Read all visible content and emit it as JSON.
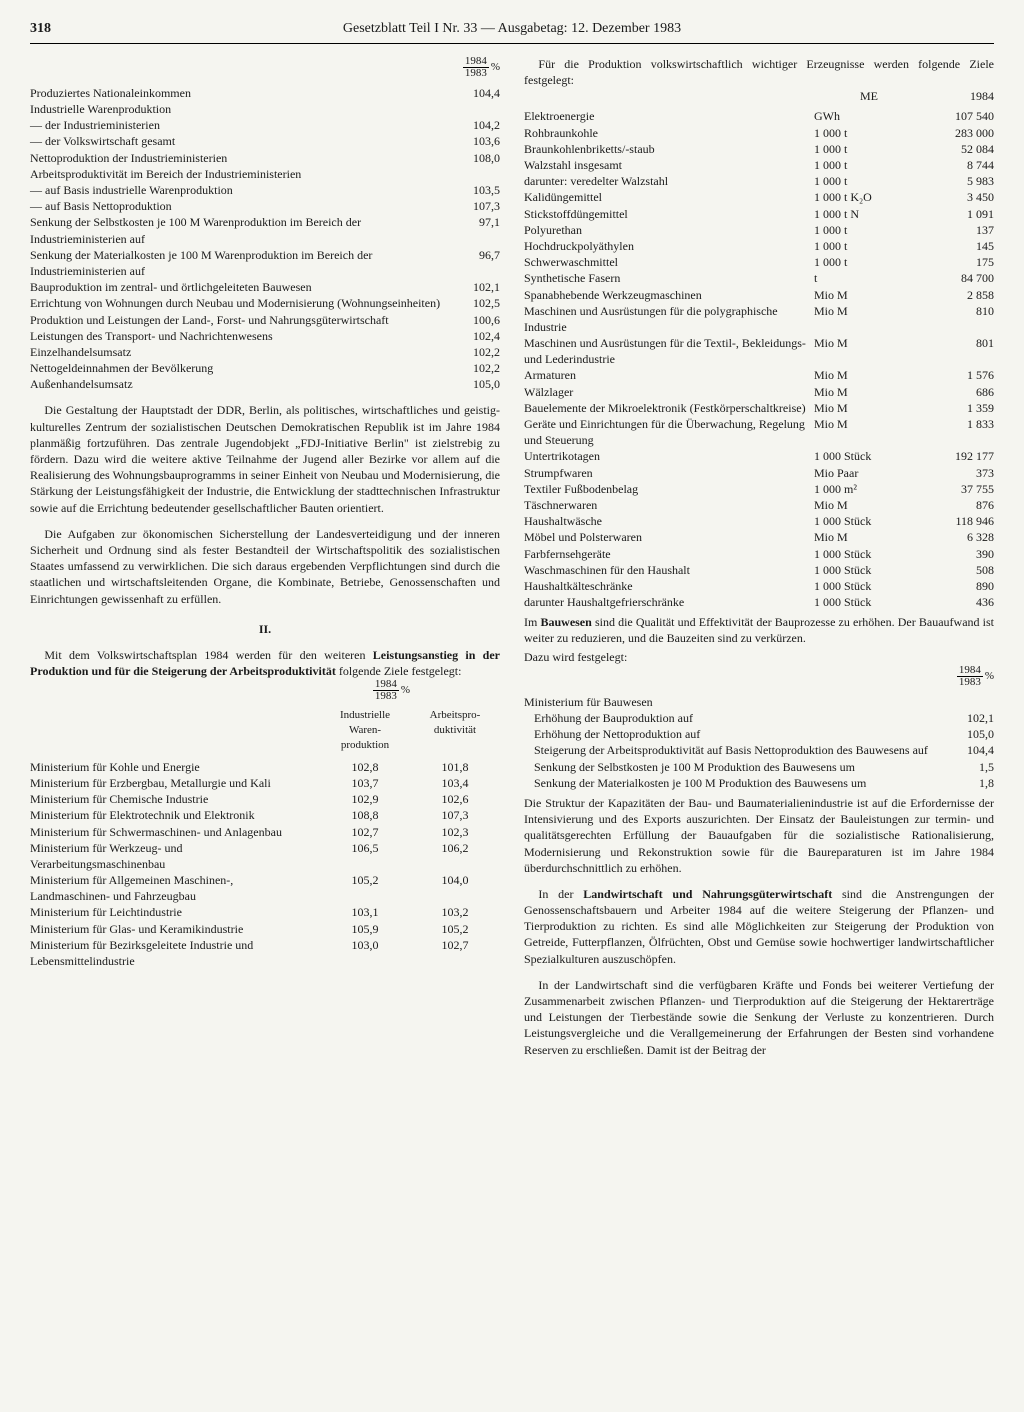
{
  "header": {
    "page_number": "318",
    "title": "Gesetzblatt Teil I Nr. 33 — Ausgabetag: 12. Dezember 1983"
  },
  "frac": {
    "num": "1984",
    "den": "1983",
    "suffix": "%"
  },
  "left": {
    "table1": [
      {
        "label": "Produziertes Nationaleinkommen",
        "val": "104,4"
      },
      {
        "label": "Industrielle Warenproduktion",
        "val": ""
      },
      {
        "label": "— der Industrieministerien",
        "val": "104,2"
      },
      {
        "label": "— der Volkswirtschaft gesamt",
        "val": "103,6"
      },
      {
        "label": "Nettoproduktion der Industrieministerien",
        "val": "108,0"
      },
      {
        "label": "Arbeitsproduktivität im Bereich der Industrieministerien",
        "val": ""
      },
      {
        "label": "— auf Basis industrielle Warenproduktion",
        "val": "103,5"
      },
      {
        "label": "— auf Basis Nettoproduktion",
        "val": "107,3"
      },
      {
        "label": "Senkung der Selbstkosten je 100 M Warenproduktion im Bereich der Industrieministerien auf",
        "val": "97,1"
      },
      {
        "label": "Senkung der Materialkosten je 100 M Warenproduktion im Bereich der Industrieministerien auf",
        "val": "96,7"
      },
      {
        "label": "Bauproduktion im zentral- und örtlichgeleiteten Bauwesen",
        "val": "102,1"
      },
      {
        "label": "Errichtung von Wohnungen durch Neubau und Modernisierung (Wohnungseinheiten)",
        "val": "102,5"
      },
      {
        "label": "Produktion und Leistungen der Land-, Forst- und Nahrungsgüterwirtschaft",
        "val": "100,6"
      },
      {
        "label": "Leistungen des Transport- und Nachrichtenwesens",
        "val": "102,4"
      },
      {
        "label": "Einzelhandelsumsatz",
        "val": "102,2"
      },
      {
        "label": "Nettogeldeinnahmen der Bevölkerung",
        "val": "102,2"
      },
      {
        "label": "Außenhandelsumsatz",
        "val": "105,0"
      }
    ],
    "para1": "Die Gestaltung der Hauptstadt der DDR, Berlin, als politisches, wirtschaftliches und geistig-kulturelles Zentrum der sozialistischen Deutschen Demokratischen Republik ist im Jahre 1984 planmäßig fortzuführen. Das zentrale Jugendobjekt „FDJ-Initiative Berlin\" ist zielstrebig zu fördern. Dazu wird die weitere aktive Teilnahme der Jugend aller Bezirke vor allem auf die Realisierung des Wohnungsbauprogramms in seiner Einheit von Neubau und Modernisierung, die Stärkung der Leistungsfähigkeit der Industrie, die Entwicklung der stadttechnischen Infrastruktur sowie auf die Errichtung bedeutender gesellschaftlicher Bauten orientiert.",
    "para2": "Die Aufgaben zur ökonomischen Sicherstellung der Landesverteidigung und der inneren Sicherheit und Ordnung sind als fester Bestandteil der Wirtschaftspolitik des sozialistischen Staates umfassend zu verwirklichen. Die sich daraus ergebenden Verpflichtungen sind durch die staatlichen und wirtschaftsleitenden Organe, die Kombinate, Betriebe, Genossenschaften und Einrichtungen gewissenhaft zu erfüllen.",
    "section2": "II.",
    "para3_pre": "Mit dem Volkswirtschaftsplan 1984 werden für den weiteren ",
    "para3_b1": "Leistungsanstieg in der Produktion und für die Steigerung der Arbeitsproduktivität",
    "para3_post": " folgende Ziele festgelegt:",
    "table2_headers": {
      "c2a": "Industrielle",
      "c2b": "Waren-",
      "c2c": "produktion",
      "c3a": "Arbeitspro-",
      "c3b": "duktivität"
    },
    "table2": [
      {
        "c1": "Ministerium für Kohle und Energie",
        "c2": "102,8",
        "c3": "101,8"
      },
      {
        "c1": "Ministerium für Erzbergbau, Metallurgie und Kali",
        "c2": "103,7",
        "c3": "103,4"
      },
      {
        "c1": "Ministerium für Chemische Industrie",
        "c2": "102,9",
        "c3": "102,6"
      },
      {
        "c1": "Ministerium für Elektrotechnik und Elektronik",
        "c2": "108,8",
        "c3": "107,3"
      },
      {
        "c1": "Ministerium für Schwermaschinen- und Anlagenbau",
        "c2": "102,7",
        "c3": "102,3"
      },
      {
        "c1": "Ministerium für Werkzeug- und Verarbeitungsmaschinenbau",
        "c2": "106,5",
        "c3": "106,2"
      },
      {
        "c1": "Ministerium für Allgemeinen Maschinen-, Landmaschinen- und Fahrzeugbau",
        "c2": "105,2",
        "c3": "104,0"
      },
      {
        "c1": "Ministerium für Leichtindustrie",
        "c2": "103,1",
        "c3": "103,2"
      },
      {
        "c1": "Ministerium für Glas- und Keramikindustrie",
        "c2": "105,9",
        "c3": "105,2"
      },
      {
        "c1": "Ministerium für Bezirksgeleitete Industrie und Lebensmittelindustrie",
        "c2": "103,0",
        "c3": "102,7"
      }
    ]
  },
  "right": {
    "para_intro": "Für die Produktion volkswirtschaftlich wichtiger Erzeugnisse werden folgende Ziele festgelegt:",
    "me_header": {
      "c2": "ME",
      "c3": "1984"
    },
    "me_table": [
      {
        "c1": "Elektroenergie",
        "c2": "GWh",
        "c3": "107 540"
      },
      {
        "c1": "Rohbraunkohle",
        "c2": "1 000 t",
        "c3": "283 000"
      },
      {
        "c1": "Braunkohlenbriketts/-staub",
        "c2": "1 000 t",
        "c3": "52 084"
      },
      {
        "c1": "Walzstahl insgesamt",
        "c2": "1 000 t",
        "c3": "8 744"
      },
      {
        "c1": "darunter: veredelter Walzstahl",
        "c2": "1 000 t",
        "c3": "5 983"
      },
      {
        "c1": "Kalidüngemittel",
        "c2": "1 000 t K₂O",
        "c3": "3 450"
      },
      {
        "c1": "Stickstoffdüngemittel",
        "c2": "1 000 t N",
        "c3": "1 091"
      },
      {
        "c1": "Polyurethan",
        "c2": "1 000 t",
        "c3": "137"
      },
      {
        "c1": "Hochdruckpolyäthylen",
        "c2": "1 000 t",
        "c3": "145"
      },
      {
        "c1": "Schwerwaschmittel",
        "c2": "1 000 t",
        "c3": "175"
      },
      {
        "c1": "Synthetische Fasern",
        "c2": "t",
        "c3": "84 700"
      },
      {
        "c1": "Spanabhebende Werkzeugmaschinen",
        "c2": "Mio M",
        "c3": "2 858"
      },
      {
        "c1": "Maschinen und Ausrüstungen für die polygraphische Industrie",
        "c2": "Mio M",
        "c3": "810"
      },
      {
        "c1": "Maschinen und Ausrüstungen für die Textil-, Bekleidungs- und Lederindustrie",
        "c2": "Mio M",
        "c3": "801"
      },
      {
        "c1": "Armaturen",
        "c2": "Mio M",
        "c3": "1 576"
      },
      {
        "c1": "Wälzlager",
        "c2": "Mio M",
        "c3": "686"
      },
      {
        "c1": "Bauelemente der Mikroelektronik (Festkörperschaltkreise)",
        "c2": "Mio M",
        "c3": "1 359"
      },
      {
        "c1": "Geräte und Einrichtungen für die Überwachung, Regelung und Steuerung",
        "c2": "Mio M",
        "c3": "1 833"
      },
      {
        "c1": "Untertrikotagen",
        "c2": "1 000 Stück",
        "c3": "192 177"
      },
      {
        "c1": "Strumpfwaren",
        "c2": "Mio Paar",
        "c3": "373"
      },
      {
        "c1": "Textiler Fußbodenbelag",
        "c2": "1 000 m²",
        "c3": "37 755"
      },
      {
        "c1": "Täschnerwaren",
        "c2": "Mio M",
        "c3": "876"
      },
      {
        "c1": "Haushaltwäsche",
        "c2": "1 000 Stück",
        "c3": "118 946"
      },
      {
        "c1": "Möbel und Polsterwaren",
        "c2": "Mio M",
        "c3": "6 328"
      },
      {
        "c1": "Farbfernsehgeräte",
        "c2": "1 000 Stück",
        "c3": "390"
      },
      {
        "c1": "Waschmaschinen für den Haushalt",
        "c2": "1 000 Stück",
        "c3": "508"
      },
      {
        "c1": "Haushaltkälteschränke",
        "c2": "1 000 Stück",
        "c3": "890"
      },
      {
        "c1": "darunter Haushaltgefrierschränke",
        "c2": "1 000 Stück",
        "c3": "436"
      }
    ],
    "bau_pre": "Im ",
    "bau_b": "Bauwesen",
    "bau_post": " sind die Qualität und Effektivität der Bauprozesse zu erhöhen. Der Bauaufwand ist weiter zu reduzieren, und die Bauzeiten sind zu verkürzen.",
    "bau_dazu": "Dazu wird festgelegt:",
    "bau_table": [
      {
        "label": "Ministerium für Bauwesen",
        "val": ""
      },
      {
        "label": "Erhöhung der Bauproduktion auf",
        "val": "102,1"
      },
      {
        "label": "Erhöhung der Nettoproduktion auf",
        "val": "105,0"
      },
      {
        "label": "Steigerung der Arbeitsproduktivität auf Basis Nettoproduktion des Bauwesens auf",
        "val": "104,4"
      },
      {
        "label": "Senkung der Selbstkosten je 100 M Produktion des Bauwesens um",
        "val": "1,5"
      },
      {
        "label": "Senkung der Materialkosten je 100 M Produktion des Bauwesens um",
        "val": "1,8"
      }
    ],
    "para_struktur": "Die Struktur der Kapazitäten der Bau- und Baumaterialienindustrie ist auf die Erfordernisse der Intensivierung und des Exports auszurichten. Der Einsatz der Bauleistungen zur termin- und qualitätsgerechten Erfüllung der Bauaufgaben für die sozialistische Rationalisierung, Modernisierung und Rekonstruktion sowie für die Baureparaturen ist im Jahre 1984 überdurchschnittlich zu erhöhen.",
    "land_pre": "In der ",
    "land_b": "Landwirtschaft und Nahrungsgüterwirtschaft",
    "land_post": " sind die Anstrengungen der Genossenschaftsbauern und Arbeiter 1984 auf die weitere Steigerung der Pflanzen- und Tierproduktion zu richten. Es sind alle Möglichkeiten zur Steigerung der Produktion von Getreide, Futterpflanzen, Ölfrüchten, Obst und Gemüse sowie hochwertiger landwirtschaftlicher Spezialkulturen auszuschöpfen.",
    "para_land2": "In der Landwirtschaft sind die verfügbaren Kräfte und Fonds bei weiterer Vertiefung der Zusammenarbeit zwischen Pflanzen- und Tierproduktion auf die Steigerung der Hektarerträge und Leistungen der Tierbestände sowie die Senkung der Verluste zu konzentrieren. Durch Leistungsvergleiche und die Verallgemeinerung der Erfahrungen der Besten sind vorhandene Reserven zu erschließen. Damit ist der Beitrag der"
  }
}
